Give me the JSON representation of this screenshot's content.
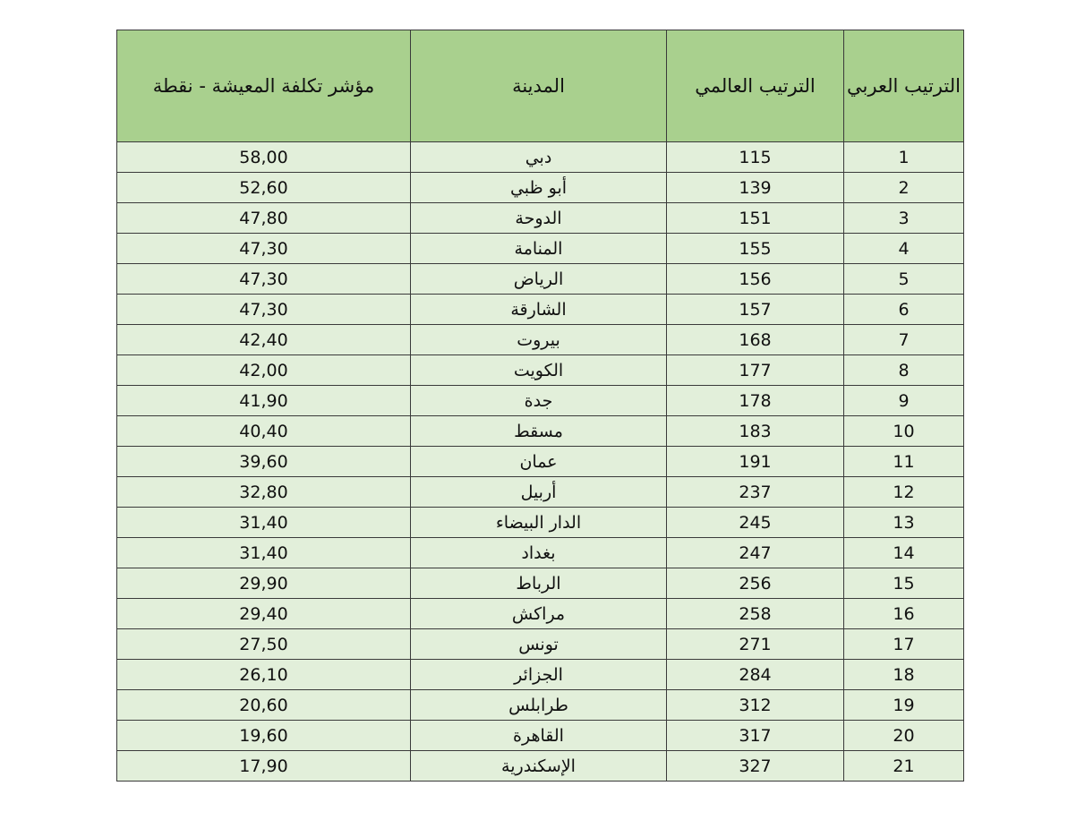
{
  "table": {
    "headers": [
      "الترتيب العربي",
      "الترتيب العالمي",
      "المدينة",
      "مؤشر تكلفة المعيشة - نقطة"
    ],
    "rows": [
      [
        1,
        115,
        "دبي",
        "58,00"
      ],
      [
        2,
        139,
        "أبو ظبي",
        "52,60"
      ],
      [
        3,
        151,
        "الدوحة",
        "47,80"
      ],
      [
        4,
        155,
        "المنامة",
        "47,30"
      ],
      [
        5,
        156,
        "الرياض",
        "47,30"
      ],
      [
        6,
        157,
        "الشارقة",
        "47,30"
      ],
      [
        7,
        168,
        "بيروت",
        "42,40"
      ],
      [
        8,
        177,
        "الكويت",
        "42,00"
      ],
      [
        9,
        178,
        "جدة",
        "41,90"
      ],
      [
        10,
        183,
        "مسقط",
        "40,40"
      ],
      [
        11,
        191,
        "عمان",
        "39,60"
      ],
      [
        12,
        237,
        "أربيل",
        "32,80"
      ],
      [
        13,
        245,
        "الدار البيضاء",
        "31,40"
      ],
      [
        14,
        247,
        "بغداد",
        "31,40"
      ],
      [
        15,
        256,
        "الرباط",
        "29,90"
      ],
      [
        16,
        258,
        "مراكش",
        "29,40"
      ],
      [
        17,
        271,
        "تونس",
        "27,50"
      ],
      [
        18,
        284,
        "الجزائر",
        "26,10"
      ],
      [
        19,
        312,
        "طرابلس",
        "20,60"
      ],
      [
        20,
        317,
        "القاهرة",
        "19,60"
      ],
      [
        21,
        327,
        "الإسكندرية",
        "17,90"
      ]
    ]
  }
}
